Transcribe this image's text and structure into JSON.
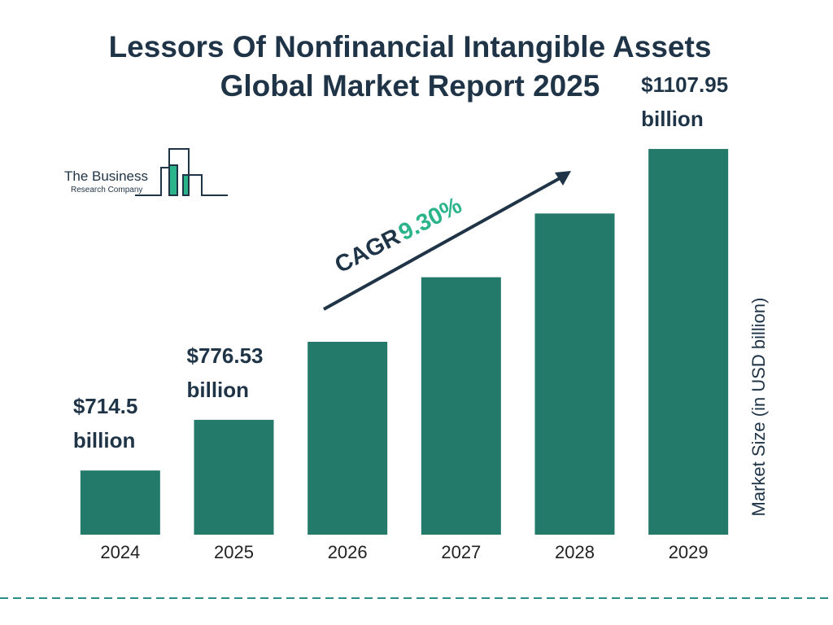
{
  "chart_data": {
    "type": "bar",
    "title": "Lessors Of Nonfinancial Intangible Assets Global Market Report 2025",
    "categories": [
      "2024",
      "2025",
      "2026",
      "2027",
      "2028",
      "2029"
    ],
    "values": [
      714.5,
      776.53,
      872,
      951,
      1029,
      1107.95
    ],
    "value_labels": [
      "$714.5 billion",
      "$776.53 billion",
      null,
      null,
      null,
      "$1107.95 billion"
    ],
    "color": "#237a6b",
    "ylim": [
      636,
      1108
    ],
    "y_label": "Market Size (in USD billion)",
    "annotations": {
      "cagr_label": "CAGR",
      "cagr_value": "9.30%"
    }
  },
  "logo": {
    "line1": "The Business",
    "line2": "Research Company"
  }
}
